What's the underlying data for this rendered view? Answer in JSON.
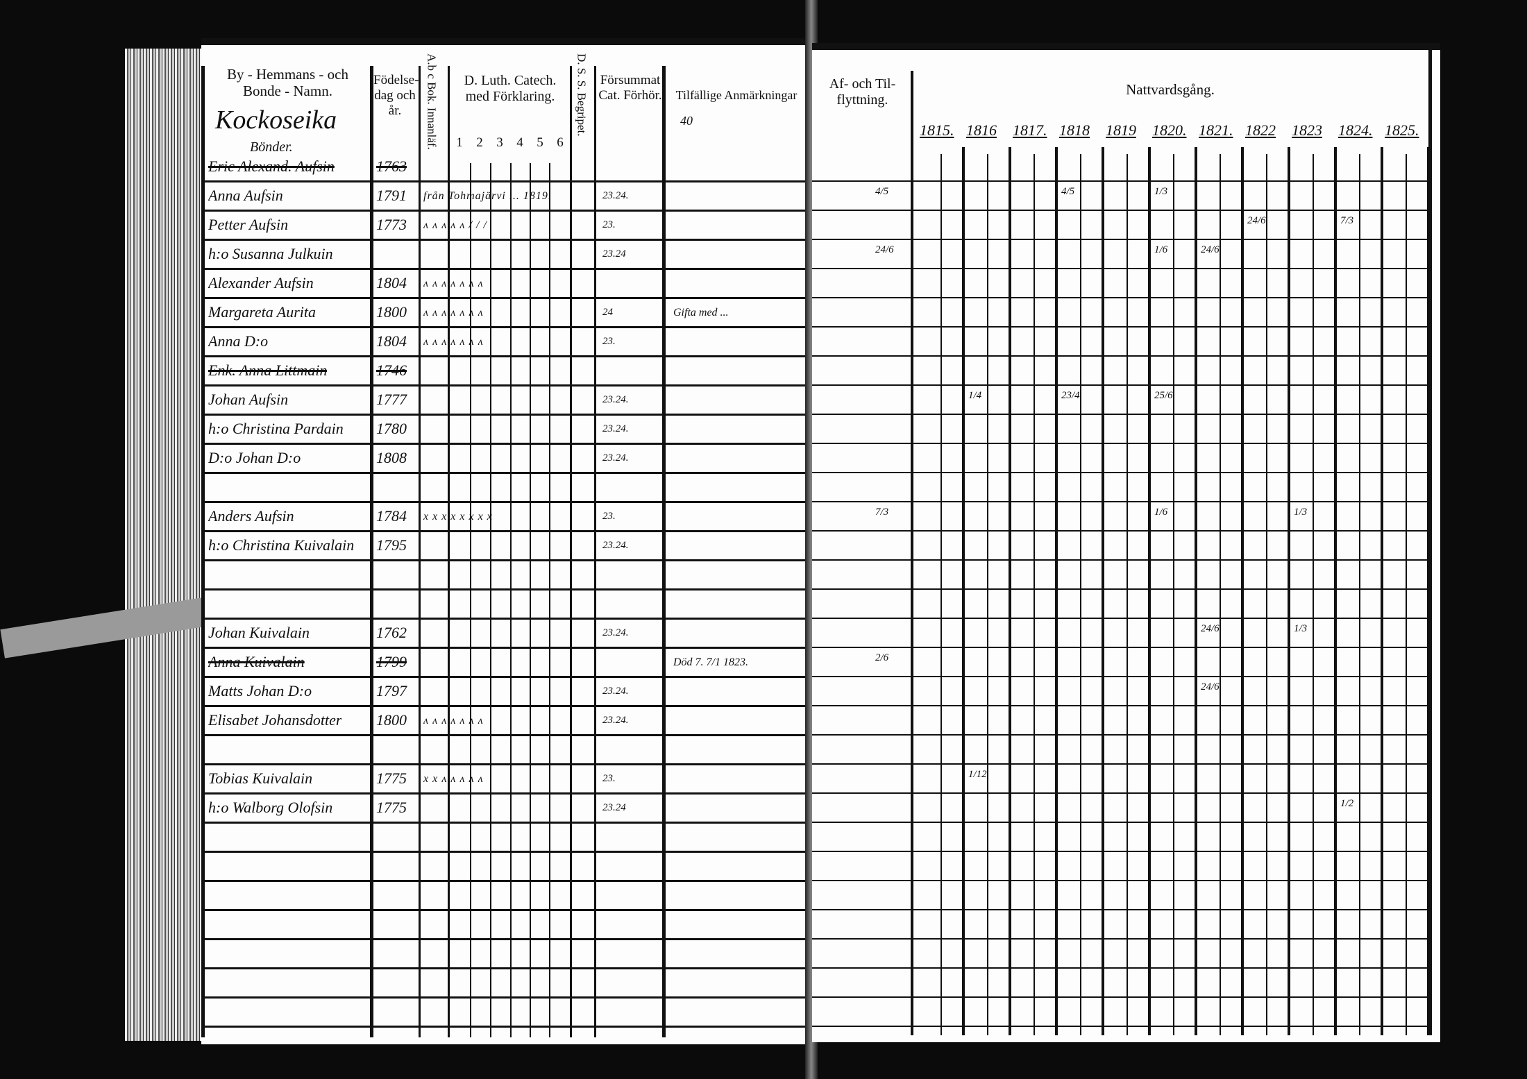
{
  "left_page": {
    "headers": {
      "name": "By - Hemmans - och Bonde - Namn.",
      "birth": "Födelse-dag och år.",
      "abc": "A.b c Bok. Innanläf.",
      "catechism": "D. Luth. Catech. med Förklaring.",
      "catechism_parts": [
        "1",
        "2",
        "3",
        "4",
        "5",
        "6"
      ],
      "dss": "D. S. S. Begripet.",
      "missed": "Försummat Cat. Förhör.",
      "remarks": "Tilfällige Anmärkningar"
    },
    "village_name": "Kockoseika",
    "village_sub": "Bönder.",
    "page_note": "40",
    "entries": [
      {
        "name": "Eric Alexand. Aufsin",
        "year": "1763",
        "struck": true,
        "marks": "",
        "missed": "",
        "remark": ""
      },
      {
        "name": "Anna Aufsin",
        "year": "1791",
        "struck": false,
        "marks": "från Tohmajärvi ... 1819.",
        "missed": "23.24.",
        "remark": ""
      },
      {
        "name": "Petter Aufsin",
        "year": "1773",
        "struck": false,
        "marks": "ʌ ʌ ʌ ʌ ʌ / / /",
        "missed": "23.",
        "remark": ""
      },
      {
        "name": "h:o Susanna Julkuin",
        "year": "",
        "struck": false,
        "marks": "",
        "missed": "23.24",
        "remark": ""
      },
      {
        "name": "Alexander Aufsin",
        "year": "1804",
        "struck": false,
        "marks": "ʌ ʌ ʌ ʌ ʌ ʌ ʌ",
        "missed": "",
        "remark": ""
      },
      {
        "name": "Margareta Aurita",
        "year": "1800",
        "struck": false,
        "marks": "ʌ ʌ ʌ ʌ ʌ ʌ ʌ",
        "missed": "24",
        "remark": "Gifta med ..."
      },
      {
        "name": "Anna D:o",
        "year": "1804",
        "struck": false,
        "marks": "ʌ ʌ ʌ ʌ ʌ ʌ ʌ",
        "missed": "23.",
        "remark": ""
      },
      {
        "name": "Enk. Anna Littmain",
        "year": "1746",
        "struck": true,
        "marks": "",
        "missed": "",
        "remark": ""
      },
      {
        "name": "Johan Aufsin",
        "year": "1777",
        "struck": false,
        "marks": "",
        "missed": "23.24.",
        "remark": ""
      },
      {
        "name": "h:o Christina Pardain",
        "year": "1780",
        "struck": false,
        "marks": "",
        "missed": "23.24.",
        "remark": ""
      },
      {
        "name": "D:o Johan D:o",
        "year": "1808",
        "struck": false,
        "marks": "",
        "missed": "23.24.",
        "remark": ""
      },
      {
        "name": "Anders Aufsin",
        "year": "1784",
        "struck": false,
        "marks": "x x x x x x x x",
        "missed": "23.",
        "remark": ""
      },
      {
        "name": "h:o Christina Kuivalain",
        "year": "1795",
        "struck": false,
        "marks": "",
        "missed": "23.24.",
        "remark": ""
      },
      {
        "name": "Johan Kuivalain",
        "year": "1762",
        "struck": false,
        "marks": "",
        "missed": "23.24.",
        "remark": ""
      },
      {
        "name": "Anna Kuivalain",
        "year": "1799",
        "struck": true,
        "marks": "",
        "missed": "",
        "remark": "Död 7. 7/1 1823."
      },
      {
        "name": "Matts Johan D:o",
        "year": "1797",
        "struck": false,
        "marks": "",
        "missed": "23.24.",
        "remark": ""
      },
      {
        "name": "Elisabet Johansdotter",
        "year": "1800",
        "struck": false,
        "marks": "ʌ ʌ ʌ ʌ ʌ ʌ ʌ",
        "missed": "23.24.",
        "remark": ""
      },
      {
        "name": "Tobias Kuivalain",
        "year": "1775",
        "struck": false,
        "marks": "x x ʌ ʌ ʌ ʌ ʌ",
        "missed": "23.",
        "remark": ""
      },
      {
        "name": "h:o Walborg Olofsin",
        "year": "1775",
        "struck": false,
        "marks": "",
        "missed": "23.24",
        "remark": ""
      }
    ]
  },
  "right_page": {
    "headers": {
      "moving": "Af- och Til- flyttning.",
      "communion": "Nattvardsgång."
    },
    "years": [
      "1815.",
      "1816",
      "1817.",
      "1818",
      "1819",
      "1820.",
      "1821.",
      "1822",
      "1823",
      "1824.",
      "1825."
    ],
    "communion_marks": [
      {
        "year": "1817",
        "entry": 1,
        "text": "4/5"
      },
      {
        "year": "1818",
        "entry": 1,
        "text": "4/5"
      },
      {
        "year": "1820.",
        "entry": 1,
        "text": "1/3"
      },
      {
        "year": "1822",
        "entry": 2,
        "text": "24/6"
      },
      {
        "year": "1824.",
        "entry": 2,
        "text": "7/3"
      },
      {
        "year": "1817",
        "entry": 3,
        "text": "24/6"
      },
      {
        "year": "1820.",
        "entry": 3,
        "text": "1/6"
      },
      {
        "year": "1821.",
        "entry": 3,
        "text": "24/6"
      },
      {
        "year": "1816",
        "entry": 8,
        "text": "1/4"
      },
      {
        "year": "1818",
        "entry": 8,
        "text": "23/4"
      },
      {
        "year": "1820.",
        "entry": 8,
        "text": "25/6"
      },
      {
        "year": "1817",
        "entry": 11,
        "text": "7/3"
      },
      {
        "year": "1820.",
        "entry": 11,
        "text": "1/6"
      },
      {
        "year": "1823",
        "entry": 11,
        "text": "1/3"
      },
      {
        "year": "1821.",
        "entry": 13,
        "text": "24/6"
      },
      {
        "year": "1823",
        "entry": 13,
        "text": "1/3"
      },
      {
        "year": "1817",
        "entry": 14,
        "text": "2/6"
      },
      {
        "year": "1821.",
        "entry": 15,
        "text": "24/6"
      },
      {
        "year": "1816",
        "entry": 17,
        "text": "1/12"
      },
      {
        "year": "1824.",
        "entry": 18,
        "text": "1/2"
      }
    ]
  }
}
